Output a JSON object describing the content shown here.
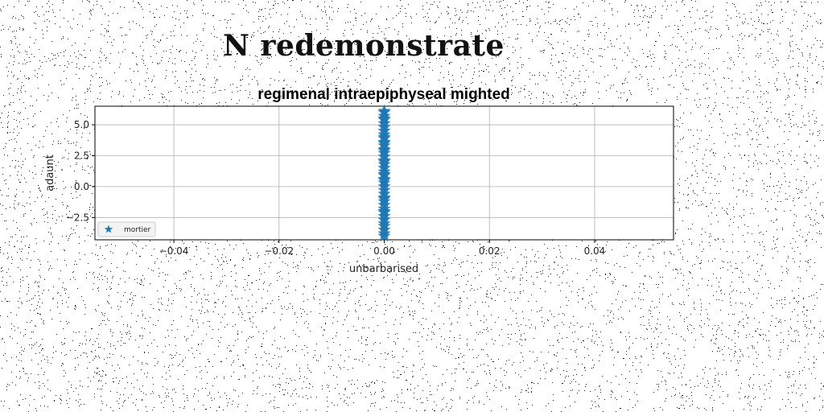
{
  "page_title": "N redemonstrate",
  "chart_data": {
    "type": "scatter",
    "title": "regimenal intraepiphyseal mighted",
    "xlabel": "unbarbarised",
    "ylabel": "adaunt",
    "xlim": [
      -0.055,
      0.055
    ],
    "ylim": [
      -4.3,
      6.5
    ],
    "xticks": [
      -0.04,
      -0.02,
      0.0,
      0.02,
      0.04
    ],
    "xtick_labels": [
      "−0.04",
      "−0.02",
      "0.00",
      "0.02",
      "0.04"
    ],
    "yticks": [
      -2.5,
      0.0,
      2.5,
      5.0
    ],
    "ytick_labels": [
      "−2.5",
      "0.0",
      "2.5",
      "5.0"
    ],
    "grid": true,
    "legend_position": "lower-left",
    "marker": "star",
    "series": [
      {
        "name": "mortier",
        "color": "#1f77b4",
        "x": [
          0,
          0,
          0,
          0,
          0,
          0,
          0,
          0,
          0,
          0,
          0,
          0,
          0,
          0,
          0,
          0,
          0,
          0,
          0,
          0,
          0,
          0,
          0,
          0,
          0,
          0,
          0,
          0,
          0,
          0,
          0,
          0,
          0,
          0,
          0,
          0,
          0,
          0,
          0,
          0,
          0,
          0,
          0,
          0,
          0
        ],
        "y": [
          -3.8,
          -3.5,
          -3.2,
          -3.0,
          -2.7,
          -2.4,
          -2.1,
          -1.8,
          -1.5,
          -1.2,
          -0.9,
          -0.6,
          -0.3,
          0.0,
          0.3,
          0.6,
          0.9,
          1.2,
          1.5,
          1.8,
          2.1,
          2.4,
          2.7,
          3.0,
          3.3,
          3.6,
          3.9,
          4.2,
          4.5,
          4.8,
          5.1,
          5.4,
          5.7,
          6.0,
          6.1,
          -4.0,
          -1.0,
          1.0,
          2.0,
          3.5,
          4.0,
          5.5,
          -2.0,
          0.5,
          2.9
        ]
      }
    ]
  }
}
